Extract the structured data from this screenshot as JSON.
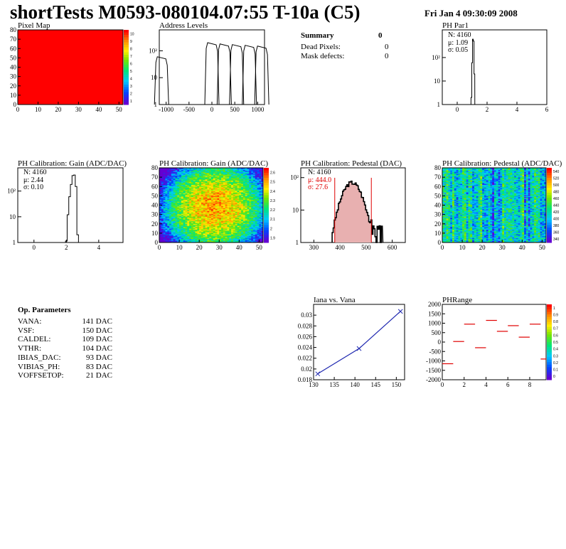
{
  "header": {
    "title": "shortTests M0593-080104.07:55 T-10a (C5)",
    "date": "Fri Jan  4 09:30:09 2008"
  },
  "summary": {
    "title": "Summary",
    "value": "0",
    "rows": [
      {
        "label": "Dead Pixels:",
        "value": "0"
      },
      {
        "label": "Mask defects:",
        "value": "0"
      }
    ]
  },
  "op_params": {
    "title": "Op. Parameters",
    "rows": [
      {
        "label": "VANA:",
        "value": "141 DAC"
      },
      {
        "label": "VSF:",
        "value": "150 DAC"
      },
      {
        "label": "CALDEL:",
        "value": "109 DAC"
      },
      {
        "label": "VTHR:",
        "value": "104 DAC"
      },
      {
        "label": "IBIAS_DAC:",
        "value": "93 DAC"
      },
      {
        "label": "VIBIAS_PH:",
        "value": "83 DAC"
      },
      {
        "label": "VOFFSETOP:",
        "value": "21 DAC"
      }
    ]
  },
  "colors": {
    "map_red": "#ff0000",
    "line_blue": "#1f28b0",
    "red_stat": "#e00000"
  },
  "chart_data": [
    {
      "id": "pixel_map",
      "type": "heatmap",
      "title": "Pixel Map",
      "xlim": [
        0,
        52
      ],
      "ylim": [
        0,
        80
      ],
      "x_ticks": [
        "0",
        "10",
        "20",
        "30",
        "40",
        "50"
      ],
      "y_ticks": [
        "0",
        "10",
        "20",
        "30",
        "40",
        "50",
        "60",
        "70",
        "80"
      ],
      "fill_value": 10,
      "palette_labels": [
        "10",
        "9",
        "8",
        "7",
        "6",
        "5",
        "4",
        "3",
        "2",
        "1"
      ]
    },
    {
      "id": "address_levels",
      "type": "line",
      "title": "Address Levels",
      "log_y": true,
      "xlim": [
        -1150,
        1150
      ],
      "x_ticks": [
        "-1000",
        "-500",
        "0",
        "500",
        "1000"
      ],
      "y_ticks": [
        "1",
        "10",
        "10²"
      ],
      "peaks": [
        {
          "x": -1100,
          "y": 60
        },
        {
          "x": 0,
          "y": 200
        },
        {
          "x": 270,
          "y": 180
        },
        {
          "x": 540,
          "y": 170
        },
        {
          "x": 820,
          "y": 160
        },
        {
          "x": 1090,
          "y": 150
        }
      ]
    },
    {
      "id": "ph_par1",
      "type": "bar",
      "title": "PH Par1",
      "log_y": true,
      "xlim": [
        -1,
        6
      ],
      "x_ticks": [
        "0",
        "2",
        "4",
        "6"
      ],
      "y_ticks": [
        "1",
        "10",
        "10²"
      ],
      "stats": {
        "n": "N: 4160",
        "mu": "μ: 1.09",
        "sigma": "σ: 0.05"
      },
      "bins": [
        {
          "x": 0.95,
          "y": 2
        },
        {
          "x": 1.0,
          "y": 60
        },
        {
          "x": 1.05,
          "y": 600
        },
        {
          "x": 1.1,
          "y": 500
        },
        {
          "x": 1.15,
          "y": 20
        }
      ]
    },
    {
      "id": "ph_gain_hist",
      "type": "bar",
      "title": "PH Calibration: Gain (ADC/DAC)",
      "log_y": true,
      "xlim": [
        -1,
        5.5
      ],
      "x_ticks": [
        "0",
        "2",
        "4"
      ],
      "y_ticks": [
        "1",
        "10",
        "10²"
      ],
      "stats": {
        "n": "N: 4160",
        "mu": "μ: 2.44",
        "sigma": "σ: 0.10"
      },
      "bins": [
        {
          "x": 2.0,
          "y": 1
        },
        {
          "x": 2.1,
          "y": 12
        },
        {
          "x": 2.2,
          "y": 60
        },
        {
          "x": 2.3,
          "y": 180
        },
        {
          "x": 2.4,
          "y": 400
        },
        {
          "x": 2.5,
          "y": 420
        },
        {
          "x": 2.6,
          "y": 150
        },
        {
          "x": 2.7,
          "y": 2
        }
      ]
    },
    {
      "id": "ph_gain_map",
      "type": "heatmap",
      "title": "PH Calibration: Gain (ADC/DAC)",
      "xlim": [
        0,
        52
      ],
      "ylim": [
        0,
        80
      ],
      "x_ticks": [
        "0",
        "10",
        "20",
        "30",
        "40",
        "50"
      ],
      "y_ticks": [
        "0",
        "10",
        "20",
        "30",
        "40",
        "50",
        "60",
        "70",
        "80"
      ],
      "value_range": [
        1.9,
        2.7
      ],
      "palette_labels": [
        "2.6",
        "2.5",
        "2.4",
        "2.3",
        "2.2",
        "2.1",
        "2",
        "1.9"
      ]
    },
    {
      "id": "ph_pedestal_hist",
      "type": "bar",
      "title": "PH Calibration: Pedestal (DAC)",
      "log_y": true,
      "xlim": [
        250,
        650
      ],
      "x_ticks": [
        "300",
        "400",
        "500",
        "600"
      ],
      "y_ticks": [
        "1",
        "10",
        "10²"
      ],
      "stats": {
        "n": "N: 4160",
        "mu": "μ: 444.0",
        "sigma": "σ: 27.6"
      },
      "cut_lines": [
        380,
        520
      ]
    },
    {
      "id": "ph_pedestal_map",
      "type": "heatmap",
      "title": "PH Calibration: Pedestal (ADC/DAC)",
      "xlim": [
        0,
        52
      ],
      "ylim": [
        0,
        80
      ],
      "x_ticks": [
        "0",
        "10",
        "20",
        "30",
        "40",
        "50"
      ],
      "y_ticks": [
        "0",
        "10",
        "20",
        "30",
        "40",
        "50",
        "60",
        "70",
        "80"
      ],
      "value_range": [
        340,
        560
      ],
      "palette_labels": [
        "540",
        "520",
        "500",
        "480",
        "460",
        "440",
        "420",
        "400",
        "380",
        "360",
        "340"
      ]
    },
    {
      "id": "iana_vs_vana",
      "type": "line",
      "title": "Iana vs. Vana",
      "xlim": [
        130,
        152
      ],
      "ylim": [
        0.018,
        0.032
      ],
      "x_ticks": [
        "130",
        "135",
        "140",
        "145",
        "150"
      ],
      "y_ticks": [
        "0.018",
        "0.02",
        "0.022",
        "0.024",
        "0.026",
        "0.028",
        "0.03"
      ],
      "x": [
        131,
        141,
        151
      ],
      "y": [
        0.0191,
        0.0238,
        0.0307
      ]
    },
    {
      "id": "ph_range",
      "type": "scatter",
      "title": "PHRange",
      "xlim": [
        0,
        9.5
      ],
      "ylim": [
        -2000,
        2000
      ],
      "x_ticks": [
        "0",
        "2",
        "4",
        "6",
        "8"
      ],
      "y_ticks": [
        "-2000",
        "-1500",
        "-1000",
        "-500",
        "0",
        "500",
        "1000",
        "1500",
        "2000"
      ],
      "palette_labels": [
        "1",
        "0.9",
        "0.8",
        "0.7",
        "0.6",
        "0.5",
        "0.4",
        "0.3",
        "0.2",
        "0.1",
        "0"
      ],
      "points": [
        {
          "x": 0.5,
          "y": -1150
        },
        {
          "x": 1.5,
          "y": 30
        },
        {
          "x": 2.5,
          "y": 950
        },
        {
          "x": 3.5,
          "y": -300
        },
        {
          "x": 4.5,
          "y": 1150
        },
        {
          "x": 5.5,
          "y": 570
        },
        {
          "x": 6.5,
          "y": 870
        },
        {
          "x": 7.5,
          "y": 260
        },
        {
          "x": 8.5,
          "y": 950
        },
        {
          "x": 9.5,
          "y": -900
        }
      ]
    }
  ]
}
